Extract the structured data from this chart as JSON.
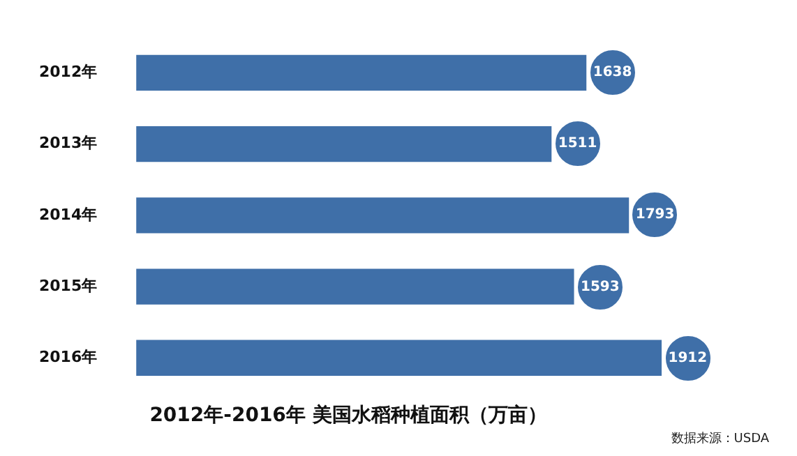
{
  "chart_data": {
    "type": "bar",
    "orientation": "horizontal",
    "title": "2012年-2016年 美国水稻种植面积（万亩）",
    "categories": [
      "2012年",
      "2013年",
      "2014年",
      "2015年",
      "2016年"
    ],
    "values": [
      1638,
      1511,
      1793,
      1593,
      1912
    ],
    "color": "#3f6fa8",
    "data_labels": true,
    "grid": false,
    "legend": false,
    "tick_labels": "y",
    "annotations": [
      "数据来源：USDA"
    ]
  }
}
